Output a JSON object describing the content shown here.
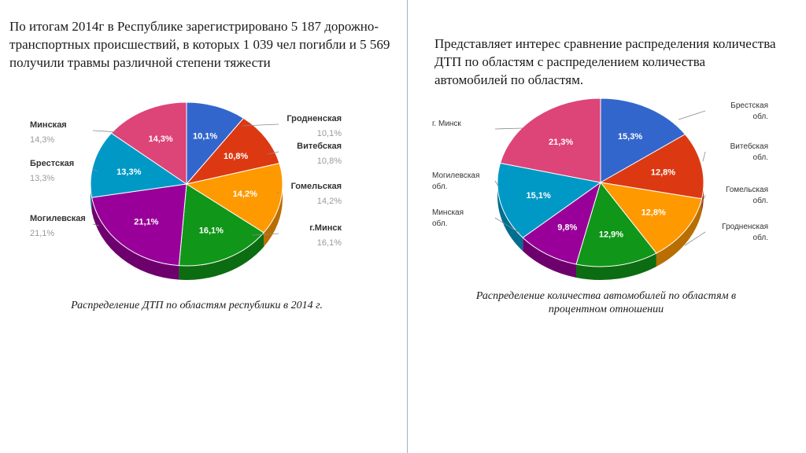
{
  "left_text": "По итогам 2014г в Республике зарегистрировано 5 187 дорожно-транспортных происшествий, в которых 1 039 чел погибли и 5 569 получили травмы различной степени тяжести",
  "right_text": "Представляет интерес сравнение распределения количества ДТП по областям с распределением количества автомобилей по областям.",
  "chart_data": [
    {
      "type": "pie",
      "caption": "Распределение ДТП по областям республики в 2014 г.",
      "slices": [
        {
          "label": "Гродненская",
          "value": 10.1,
          "value_label": "10,1%",
          "color": "#3366cc"
        },
        {
          "label": "Витебская",
          "value": 10.8,
          "value_label": "10,8%",
          "color": "#dc3912"
        },
        {
          "label": "Гомельская",
          "value": 14.2,
          "value_label": "14,2%",
          "color": "#ff9900"
        },
        {
          "label": "г.Минск",
          "value": 16.1,
          "value_label": "16,1%",
          "color": "#109618"
        },
        {
          "label": "Могилевская",
          "value": 21.1,
          "value_label": "21,1%",
          "color": "#990099"
        },
        {
          "label": "Брестская",
          "value": 13.3,
          "value_label": "13,3%",
          "color": "#0099c6"
        },
        {
          "label": "Минская",
          "value": 14.3,
          "value_label": "14,3%",
          "color": "#dd4477"
        }
      ]
    },
    {
      "type": "pie",
      "caption": "Распределение количества автомобилей по областям в процентном отношении",
      "slices": [
        {
          "label": "Брестская обл.",
          "value": 15.3,
          "value_label": "15,3%",
          "color": "#3366cc"
        },
        {
          "label": "Витебская обл.",
          "value": 12.8,
          "value_label": "12,8%",
          "color": "#dc3912"
        },
        {
          "label": "Гомельская обл.",
          "value": 12.8,
          "value_label": "12,8%",
          "color": "#ff9900"
        },
        {
          "label": "Гродненская обл.",
          "value": 12.9,
          "value_label": "12,9%",
          "color": "#109618"
        },
        {
          "label": "Минская обл.",
          "value": 9.8,
          "value_label": "9,8%",
          "color": "#990099"
        },
        {
          "label": "Могилевская обл.",
          "value": 15.1,
          "value_label": "15,1%",
          "color": "#0099c6"
        },
        {
          "label": "г. Минск",
          "value": 21.3,
          "value_label": "21,3%",
          "color": "#dd4477"
        }
      ]
    }
  ]
}
